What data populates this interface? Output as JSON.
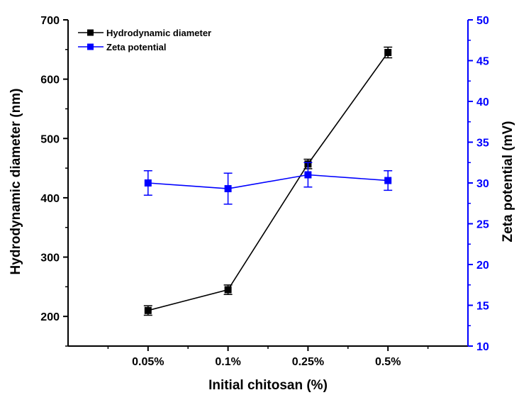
{
  "chart_data": {
    "type": "line",
    "categories": [
      "0.05%",
      "0.1%",
      "0.25%",
      "0.5%"
    ],
    "xlabel": "Initial chitosan (%)",
    "ylabel_left": "Hydrodynamic diameter (nm)",
    "ylabel_right": "Zeta potential (mV)",
    "ylim_left": [
      150,
      700
    ],
    "ylim_right": [
      10,
      50
    ],
    "yticks_left": [
      200,
      300,
      400,
      500,
      600,
      700
    ],
    "yticks_right": [
      10,
      15,
      20,
      25,
      30,
      35,
      40,
      45,
      50
    ],
    "legend_position": "top-left",
    "series": [
      {
        "name": "Hydrodynamic diameter",
        "axis": "left",
        "color": "#000000",
        "marker": "square",
        "values": [
          210,
          245,
          457,
          645
        ],
        "errors": [
          8,
          8,
          8,
          9
        ]
      },
      {
        "name": "Zeta potential",
        "axis": "right",
        "color": "#0000ff",
        "marker": "square",
        "values": [
          30.0,
          29.3,
          31.0,
          30.3
        ],
        "errors": [
          1.5,
          1.9,
          1.5,
          1.2
        ]
      }
    ]
  }
}
